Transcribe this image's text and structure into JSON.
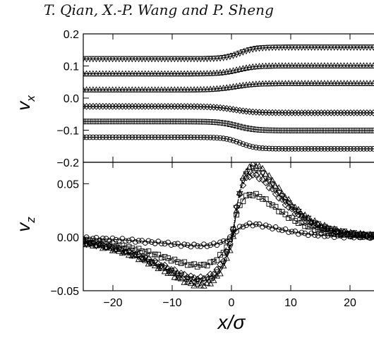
{
  "header": {
    "authors": "T. Qian, X.-P. Wang and P. Sheng"
  },
  "chart_data": [
    {
      "panel": "top",
      "type": "line",
      "ylabel": "v",
      "ylabel_subscript": "x",
      "xlim": [
        -25,
        25
      ],
      "ylim": [
        -0.2,
        0.2
      ],
      "yticks": [
        -0.2,
        -0.1,
        0.0,
        0.1,
        0.2
      ],
      "ytick_labels": [
        "−0.2",
        "−0.1",
        "0.0",
        "0.1",
        "0.2"
      ],
      "xticks": [
        -20,
        -10,
        0,
        10,
        20
      ],
      "series": [
        {
          "marker": "triangle-down",
          "left": 0.122,
          "right": 0.158,
          "x0": 1.5,
          "w": 2.6
        },
        {
          "marker": "triangle-up",
          "left": 0.076,
          "right": 0.101,
          "x0": 1.0,
          "w": 3.0
        },
        {
          "marker": "triangle-up",
          "left": 0.026,
          "right": 0.046,
          "x0": 0.5,
          "w": 3.5
        },
        {
          "marker": "diamond",
          "left": -0.026,
          "right": -0.046,
          "x0": 0.5,
          "w": 3.5
        },
        {
          "marker": "square",
          "left": -0.073,
          "right": -0.101,
          "x0": 1.0,
          "w": 3.0
        },
        {
          "marker": "circle",
          "left": -0.122,
          "right": -0.158,
          "x0": 1.5,
          "w": 2.6
        }
      ]
    },
    {
      "panel": "bottom",
      "type": "line",
      "ylabel": "v",
      "ylabel_subscript": "z",
      "xlabel": "x/σ",
      "xlim": [
        -25,
        25
      ],
      "ylim": [
        -0.05,
        0.07
      ],
      "yticks": [
        -0.05,
        0.0,
        0.05
      ],
      "ytick_labels": [
        "−0.05",
        "0.00",
        "0.05"
      ],
      "xticks": [
        -20,
        -10,
        0,
        10,
        20
      ],
      "xtick_labels": [
        "−20",
        "−10",
        "0",
        "10",
        "20"
      ],
      "series": [
        {
          "marker": "triangle-up",
          "dash": "4,3",
          "amp": 0.068,
          "x0": 0.3
        },
        {
          "marker": "triangle-down",
          "dash": "6,2,1,2",
          "amp": 0.063,
          "x0": 0.2
        },
        {
          "marker": "diamond",
          "dash": "1,2",
          "amp": 0.058,
          "x0": 0.1
        },
        {
          "marker": "square",
          "dash": "8,3",
          "amp": 0.04,
          "x0": 0.0
        },
        {
          "marker": "circle",
          "dash": "",
          "amp": 0.012,
          "x0": 0.0
        }
      ]
    }
  ]
}
